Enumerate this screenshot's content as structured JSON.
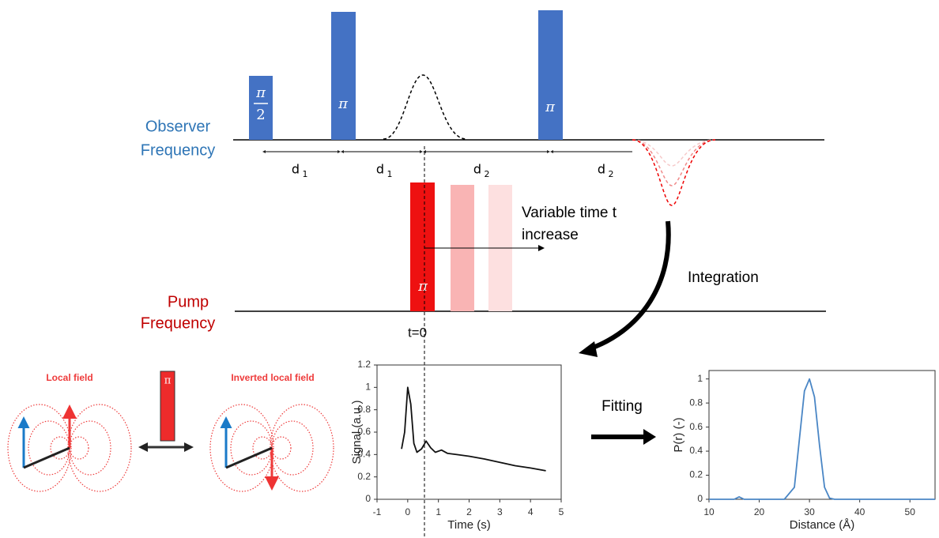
{
  "observer_label": [
    "Observer",
    "Frequency"
  ],
  "pump_label": [
    "Pump",
    "Frequency"
  ],
  "observer_pulses": [
    {
      "numerator": "π",
      "denominator": "2"
    },
    {
      "label": "π"
    },
    {
      "label": "π"
    }
  ],
  "delays": [
    {
      "symbol": "d",
      "subscript": "1"
    },
    {
      "symbol": "d",
      "subscript": "1"
    },
    {
      "symbol": "d",
      "subscript": "2"
    },
    {
      "symbol": "d",
      "subscript": "2"
    }
  ],
  "pump_pulse_label": "π",
  "variable_time": [
    "Variable time t",
    "increase"
  ],
  "integration": "Integration",
  "t_zero": "t=0",
  "fitting": "Fitting",
  "local_field": "Local field",
  "inverted_local_field": "Inverted local field",
  "flip_pulse_label": "π",
  "signal_chart": {
    "type": "line",
    "x_label": "Time (s)",
    "y_label": "Signal (a.u.)",
    "xlim": [
      -1,
      5
    ],
    "ylim": [
      0,
      1.2
    ],
    "xticks": [
      -1,
      0,
      1,
      2,
      3,
      4,
      5
    ],
    "yticks": [
      0,
      0.2,
      0.4,
      0.6,
      0.8,
      1,
      1.2
    ],
    "color": "#111111",
    "x": [
      -0.2,
      -0.1,
      0,
      0.1,
      0.2,
      0.3,
      0.45,
      0.6,
      0.75,
      0.9,
      1.1,
      1.3,
      1.6,
      2,
      2.5,
      3,
      3.5,
      4,
      4.5
    ],
    "values": [
      0.45,
      0.6,
      1.0,
      0.85,
      0.5,
      0.42,
      0.45,
      0.52,
      0.46,
      0.42,
      0.44,
      0.41,
      0.4,
      0.385,
      0.36,
      0.33,
      0.3,
      0.28,
      0.255
    ]
  },
  "distance_chart": {
    "type": "line",
    "x_label": "Distance (Å)",
    "y_label": "P(r) (-)",
    "xlim": [
      10,
      55
    ],
    "ylim": [
      0,
      1.07
    ],
    "xticks": [
      10,
      20,
      30,
      40,
      50
    ],
    "yticks": [
      0,
      0.2,
      0.4,
      0.6,
      0.8,
      1
    ],
    "color": "#4a86c5",
    "x": [
      10,
      15,
      16,
      17,
      25,
      27,
      28,
      29,
      30,
      31,
      32,
      33,
      34,
      35,
      55
    ],
    "values": [
      0,
      0,
      0.02,
      0,
      0,
      0.1,
      0.5,
      0.9,
      1.0,
      0.85,
      0.45,
      0.1,
      0.01,
      0,
      0
    ]
  }
}
